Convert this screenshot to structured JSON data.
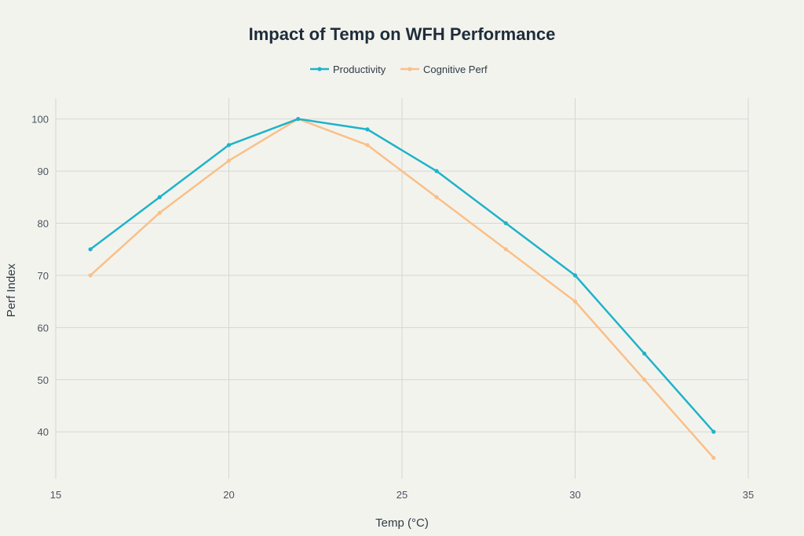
{
  "chart_data": {
    "type": "line",
    "title": "Impact of Temp on WFH Performance",
    "xlabel": "Temp (°C)",
    "ylabel": "Perf Index",
    "xlim": [
      15,
      35
    ],
    "ylim": [
      31,
      104
    ],
    "xticks": [
      15,
      20,
      25,
      30,
      35
    ],
    "yticks": [
      40,
      50,
      60,
      70,
      80,
      90,
      100
    ],
    "grid": true,
    "legend_position": "top-center",
    "x": [
      16,
      18,
      20,
      22,
      24,
      26,
      28,
      30,
      32,
      34
    ],
    "series": [
      {
        "name": "Productivity",
        "color": "#1fb3c9",
        "values": [
          75,
          85,
          95,
          100,
          98,
          90,
          80,
          70,
          55,
          40
        ]
      },
      {
        "name": "Cognitive Perf",
        "color": "#f9c089",
        "values": [
          70,
          82,
          92,
          100,
          95,
          85,
          75,
          65,
          50,
          35
        ]
      }
    ]
  }
}
